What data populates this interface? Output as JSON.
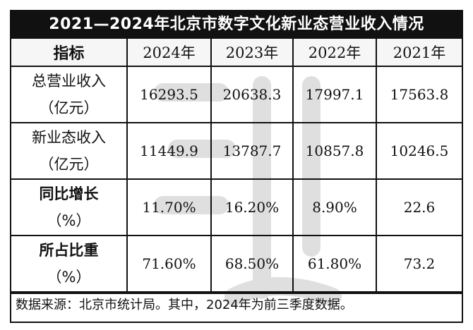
{
  "title": "2021—2024年北京市数字文化新业态营业收入情况",
  "header": {
    "metric": "指标",
    "years": [
      "2024年",
      "2023年",
      "2022年",
      "2021年"
    ]
  },
  "rows": [
    {
      "label_line1": "总营业收入",
      "label_line2": "（亿元）",
      "bold": false,
      "values": [
        "16293.5",
        "20638.3",
        "17997.1",
        "17563.8"
      ]
    },
    {
      "label_line1": "新业态收入",
      "label_line2": "（亿元）",
      "bold": false,
      "values": [
        "11449.9",
        "13787.7",
        "10857.8",
        "10246.5"
      ]
    },
    {
      "label_line1": "同比增长",
      "label_line2": "（%）",
      "bold": true,
      "values": [
        "11.70%",
        "16.20%",
        "8.90%",
        "22.6"
      ]
    },
    {
      "label_line1": "所占比重",
      "label_line2": "（%）",
      "bold": true,
      "values": [
        "71.60%",
        "68.50%",
        "61.80%",
        "73.2"
      ]
    }
  ],
  "footer": "数据来源：北京市统计局。其中，2024年为前三季度数据。"
}
